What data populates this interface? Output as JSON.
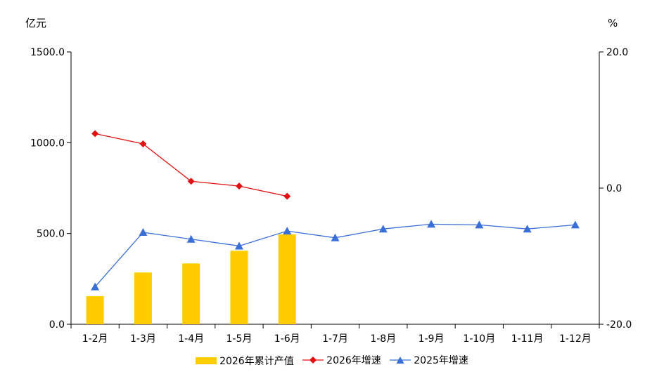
{
  "units": {
    "left": "亿元",
    "right": "%"
  },
  "chart_data": {
    "type": "bar+line",
    "categories": [
      "1-2月",
      "1-3月",
      "1-4月",
      "1-5月",
      "1-6月",
      "1-7月",
      "1-8月",
      "1-9月",
      "1-10月",
      "1-11月",
      "1-12月"
    ],
    "y_left": {
      "range": [
        0,
        1500
      ],
      "ticks": [
        "0.0",
        "500.0",
        "1000.0",
        "1500.0"
      ]
    },
    "y_right": {
      "range": [
        -20,
        20
      ],
      "ticks": [
        "-20.0",
        "0.0",
        "20.0"
      ]
    },
    "series": [
      {
        "name": "2026年累计产值",
        "type": "bar",
        "axis": "left",
        "color": "#ffcc00",
        "values": [
          155,
          285,
          335,
          405,
          495,
          null,
          null,
          null,
          null,
          null,
          null
        ]
      },
      {
        "name": "2026年增速",
        "type": "line",
        "axis": "right",
        "color": "#e01010",
        "marker": "diamond",
        "values": [
          8.0,
          6.5,
          1.0,
          0.3,
          -1.2,
          null,
          null,
          null,
          null,
          null,
          null
        ]
      },
      {
        "name": "2025年增速",
        "type": "line",
        "axis": "right",
        "color": "#3a6fd8",
        "marker": "triangle",
        "values": [
          -14.5,
          -6.5,
          -7.5,
          -8.5,
          -6.3,
          -7.3,
          -6.0,
          -5.3,
          -5.4,
          -6.0,
          -5.4
        ]
      }
    ]
  }
}
